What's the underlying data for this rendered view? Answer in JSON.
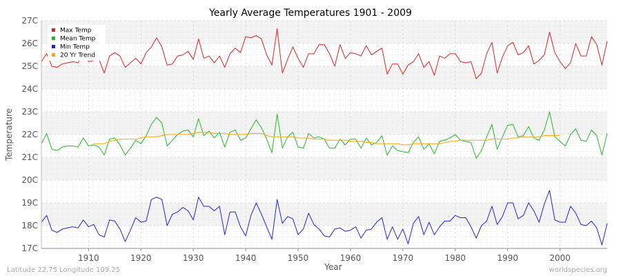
{
  "chart_data": {
    "type": "line",
    "title": "Yearly Average Temperatures 1901 - 2009",
    "xlabel": "Year",
    "ylabel": "Temperature",
    "xlim": [
      1901,
      2009
    ],
    "ylim": [
      17,
      27
    ],
    "x_ticks": [
      1910,
      1920,
      1930,
      1940,
      1950,
      1960,
      1970,
      1980,
      1990,
      2000
    ],
    "y_ticks": [
      17,
      18,
      19,
      20,
      21,
      22,
      23,
      24,
      25,
      26,
      27
    ],
    "y_tick_labels": [
      "17C",
      "18C",
      "19C",
      "20C",
      "21C",
      "22C",
      "23C",
      "24C",
      "25C",
      "26C",
      "27C"
    ],
    "grid": true,
    "legend_position": "top-left",
    "years": [
      1901,
      1902,
      1903,
      1904,
      1905,
      1906,
      1907,
      1908,
      1909,
      1910,
      1911,
      1912,
      1913,
      1914,
      1915,
      1916,
      1917,
      1918,
      1919,
      1920,
      1921,
      1922,
      1923,
      1924,
      1925,
      1926,
      1927,
      1928,
      1929,
      1930,
      1931,
      1932,
      1933,
      1934,
      1935,
      1936,
      1937,
      1938,
      1939,
      1940,
      1941,
      1942,
      1943,
      1944,
      1945,
      1946,
      1947,
      1948,
      1949,
      1950,
      1951,
      1952,
      1953,
      1954,
      1955,
      1956,
      1957,
      1958,
      1959,
      1960,
      1961,
      1962,
      1963,
      1964,
      1965,
      1966,
      1967,
      1968,
      1969,
      1970,
      1971,
      1972,
      1973,
      1974,
      1975,
      1976,
      1977,
      1978,
      1979,
      1980,
      1981,
      1982,
      1983,
      1984,
      1985,
      1986,
      1987,
      1988,
      1989,
      1990,
      1991,
      1992,
      1993,
      1994,
      1995,
      1996,
      1997,
      1998,
      1999,
      2000,
      2001,
      2002,
      2003,
      2004,
      2005,
      2006,
      2007,
      2008,
      2009
    ],
    "series": [
      {
        "name": "Max Temp",
        "color": "#dd2222",
        "values": [
          25.2,
          25.55,
          25.0,
          24.95,
          25.1,
          25.15,
          25.2,
          25.15,
          25.6,
          25.2,
          25.25,
          25.3,
          24.7,
          25.45,
          25.6,
          25.45,
          24.95,
          25.15,
          25.35,
          25.1,
          25.6,
          25.85,
          26.25,
          25.85,
          25.05,
          25.1,
          25.45,
          25.5,
          25.65,
          25.3,
          26.2,
          25.35,
          25.45,
          25.15,
          25.45,
          24.95,
          25.55,
          25.8,
          25.6,
          26.3,
          26.25,
          26.35,
          26.2,
          25.5,
          25.05,
          26.65,
          24.7,
          25.3,
          25.85,
          25.35,
          24.95,
          25.55,
          25.55,
          25.95,
          25.95,
          25.55,
          25.0,
          25.95,
          25.35,
          25.6,
          25.55,
          25.45,
          25.9,
          25.5,
          25.65,
          25.8,
          24.65,
          25.1,
          25.1,
          24.65,
          25.05,
          25.2,
          25.55,
          24.95,
          25.2,
          24.6,
          25.45,
          25.35,
          25.55,
          25.55,
          25.2,
          25.15,
          25.2,
          24.45,
          24.7,
          25.55,
          26.05,
          24.7,
          25.4,
          25.9,
          26.05,
          25.5,
          25.6,
          25.9,
          25.1,
          25.25,
          25.5,
          26.5,
          25.6,
          25.2,
          24.9,
          25.15,
          26.0,
          25.45,
          25.45,
          26.3,
          25.95,
          25.05,
          26.1
        ]
      },
      {
        "name": "Mean Temp",
        "color": "#22bb22",
        "values": [
          21.6,
          22.05,
          21.35,
          21.3,
          21.45,
          21.5,
          21.5,
          21.45,
          21.85,
          21.5,
          21.55,
          21.45,
          21.1,
          21.8,
          21.85,
          21.55,
          21.1,
          21.4,
          21.75,
          21.6,
          21.95,
          22.45,
          22.75,
          22.5,
          21.5,
          21.75,
          22.0,
          22.15,
          22.2,
          21.9,
          22.7,
          21.95,
          22.15,
          21.85,
          22.1,
          21.45,
          22.1,
          22.2,
          21.75,
          21.85,
          22.25,
          22.65,
          22.3,
          21.8,
          21.2,
          22.9,
          21.4,
          21.9,
          22.1,
          21.45,
          21.4,
          22.05,
          21.85,
          21.9,
          21.8,
          21.4,
          21.4,
          21.8,
          21.55,
          21.8,
          21.8,
          21.4,
          21.85,
          21.55,
          21.65,
          21.95,
          21.1,
          21.5,
          21.3,
          21.25,
          21.2,
          21.65,
          21.9,
          21.35,
          21.6,
          21.15,
          21.7,
          21.75,
          21.85,
          22.0,
          21.75,
          21.7,
          21.65,
          20.95,
          21.3,
          21.9,
          22.45,
          21.35,
          21.9,
          22.4,
          22.45,
          21.9,
          21.95,
          22.35,
          21.85,
          21.75,
          22.2,
          23.0,
          21.9,
          21.7,
          21.5,
          22.0,
          22.25,
          21.75,
          21.7,
          22.2,
          21.95,
          21.1,
          22.05
        ]
      },
      {
        "name": "Min Temp",
        "color": "#2222dd",
        "values": [
          18.15,
          18.45,
          17.8,
          17.7,
          17.85,
          17.9,
          17.95,
          17.9,
          18.25,
          17.95,
          18.05,
          17.6,
          17.5,
          18.25,
          18.2,
          17.85,
          17.3,
          17.8,
          18.35,
          18.15,
          18.2,
          19.15,
          19.25,
          19.15,
          18.0,
          18.5,
          18.6,
          18.8,
          18.65,
          18.25,
          19.25,
          18.85,
          18.85,
          18.65,
          18.85,
          17.6,
          18.6,
          18.6,
          17.95,
          17.55,
          18.45,
          19.0,
          18.5,
          17.95,
          17.4,
          19.15,
          18.1,
          18.4,
          18.3,
          17.6,
          17.85,
          18.55,
          18.05,
          17.85,
          17.55,
          17.5,
          17.85,
          17.9,
          17.75,
          17.8,
          17.95,
          17.45,
          17.8,
          17.85,
          18.15,
          18.35,
          17.4,
          17.95,
          17.4,
          17.85,
          17.2,
          18.1,
          18.4,
          17.6,
          18.15,
          17.6,
          17.95,
          18.2,
          18.2,
          18.45,
          18.35,
          18.35,
          17.95,
          17.45,
          18.0,
          18.2,
          18.85,
          18.05,
          18.4,
          19.0,
          19.0,
          18.3,
          18.45,
          19.0,
          18.65,
          18.15,
          18.95,
          19.55,
          18.25,
          18.15,
          18.15,
          18.85,
          18.55,
          18.05,
          18.0,
          18.2,
          17.9,
          17.15,
          18.1
        ]
      },
      {
        "name": "20 Yr Trend",
        "color": "#ffa500",
        "values": [
          null,
          null,
          null,
          null,
          null,
          null,
          null,
          null,
          null,
          null,
          21.6,
          21.6,
          21.6,
          21.7,
          21.75,
          21.8,
          21.8,
          21.8,
          21.8,
          21.85,
          21.9,
          21.9,
          21.9,
          21.95,
          22.0,
          22.0,
          22.0,
          22.0,
          22.0,
          22.05,
          22.1,
          22.1,
          22.1,
          22.05,
          22.05,
          22.05,
          22.0,
          22.0,
          22.0,
          22.0,
          22.05,
          22.05,
          22.05,
          21.95,
          21.9,
          21.9,
          21.9,
          21.9,
          21.9,
          21.85,
          21.85,
          21.85,
          21.8,
          21.8,
          21.8,
          21.75,
          21.75,
          21.75,
          21.75,
          21.7,
          21.7,
          21.7,
          21.65,
          21.65,
          21.6,
          21.6,
          21.6,
          21.6,
          21.6,
          21.55,
          21.55,
          21.6,
          21.6,
          21.6,
          21.6,
          21.6,
          21.6,
          21.65,
          21.7,
          21.7,
          21.75,
          21.75,
          21.75,
          21.75,
          21.75,
          21.75,
          21.8,
          21.8,
          21.8,
          21.8,
          21.85,
          21.85,
          21.9,
          21.9,
          21.9,
          21.9,
          21.95,
          21.95,
          21.95,
          21.95,
          null,
          null,
          null,
          null,
          null,
          null,
          null,
          null,
          null
        ]
      }
    ]
  },
  "footer": {
    "location": "Latitude 22.75 Longitude 109.25",
    "credit": "worldspecies.org"
  }
}
